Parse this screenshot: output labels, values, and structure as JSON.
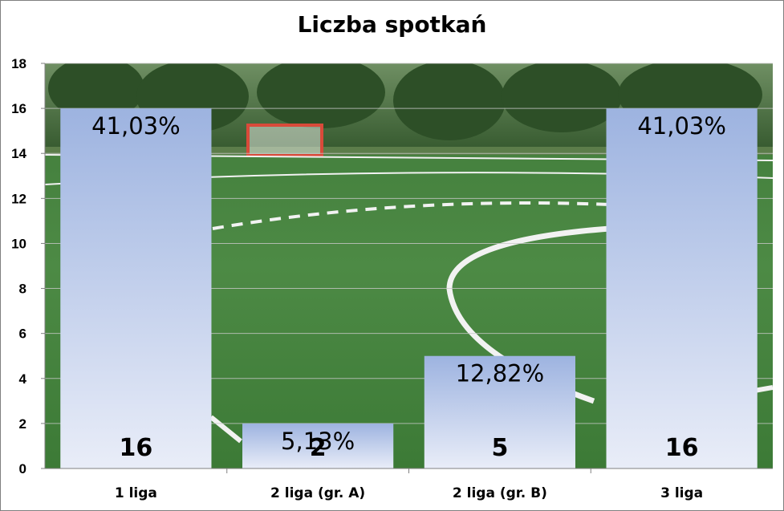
{
  "chart_data": {
    "type": "bar",
    "title": "Liczba spotkań",
    "categories": [
      "1 liga",
      "2 liga (gr. A)",
      "2 liga (gr. B)",
      "3 liga"
    ],
    "values": [
      16,
      2,
      5,
      16
    ],
    "percent_labels": [
      "41,03%",
      "5,13%",
      "12,82%",
      "41,03%"
    ],
    "ylim": [
      0,
      18
    ],
    "yticks": [
      0,
      2,
      4,
      6,
      8,
      10,
      12,
      14,
      16,
      18
    ],
    "xlabel": "",
    "ylabel": "",
    "grid": true,
    "legend": "none",
    "plot_background": "photo of an artificial-turf football pitch with a goal and trees",
    "colors": {
      "bar_top": "#9db3e0",
      "bar_bottom": "#e9edf8",
      "grid": "#c8c8c8",
      "axis": "#808080"
    }
  }
}
